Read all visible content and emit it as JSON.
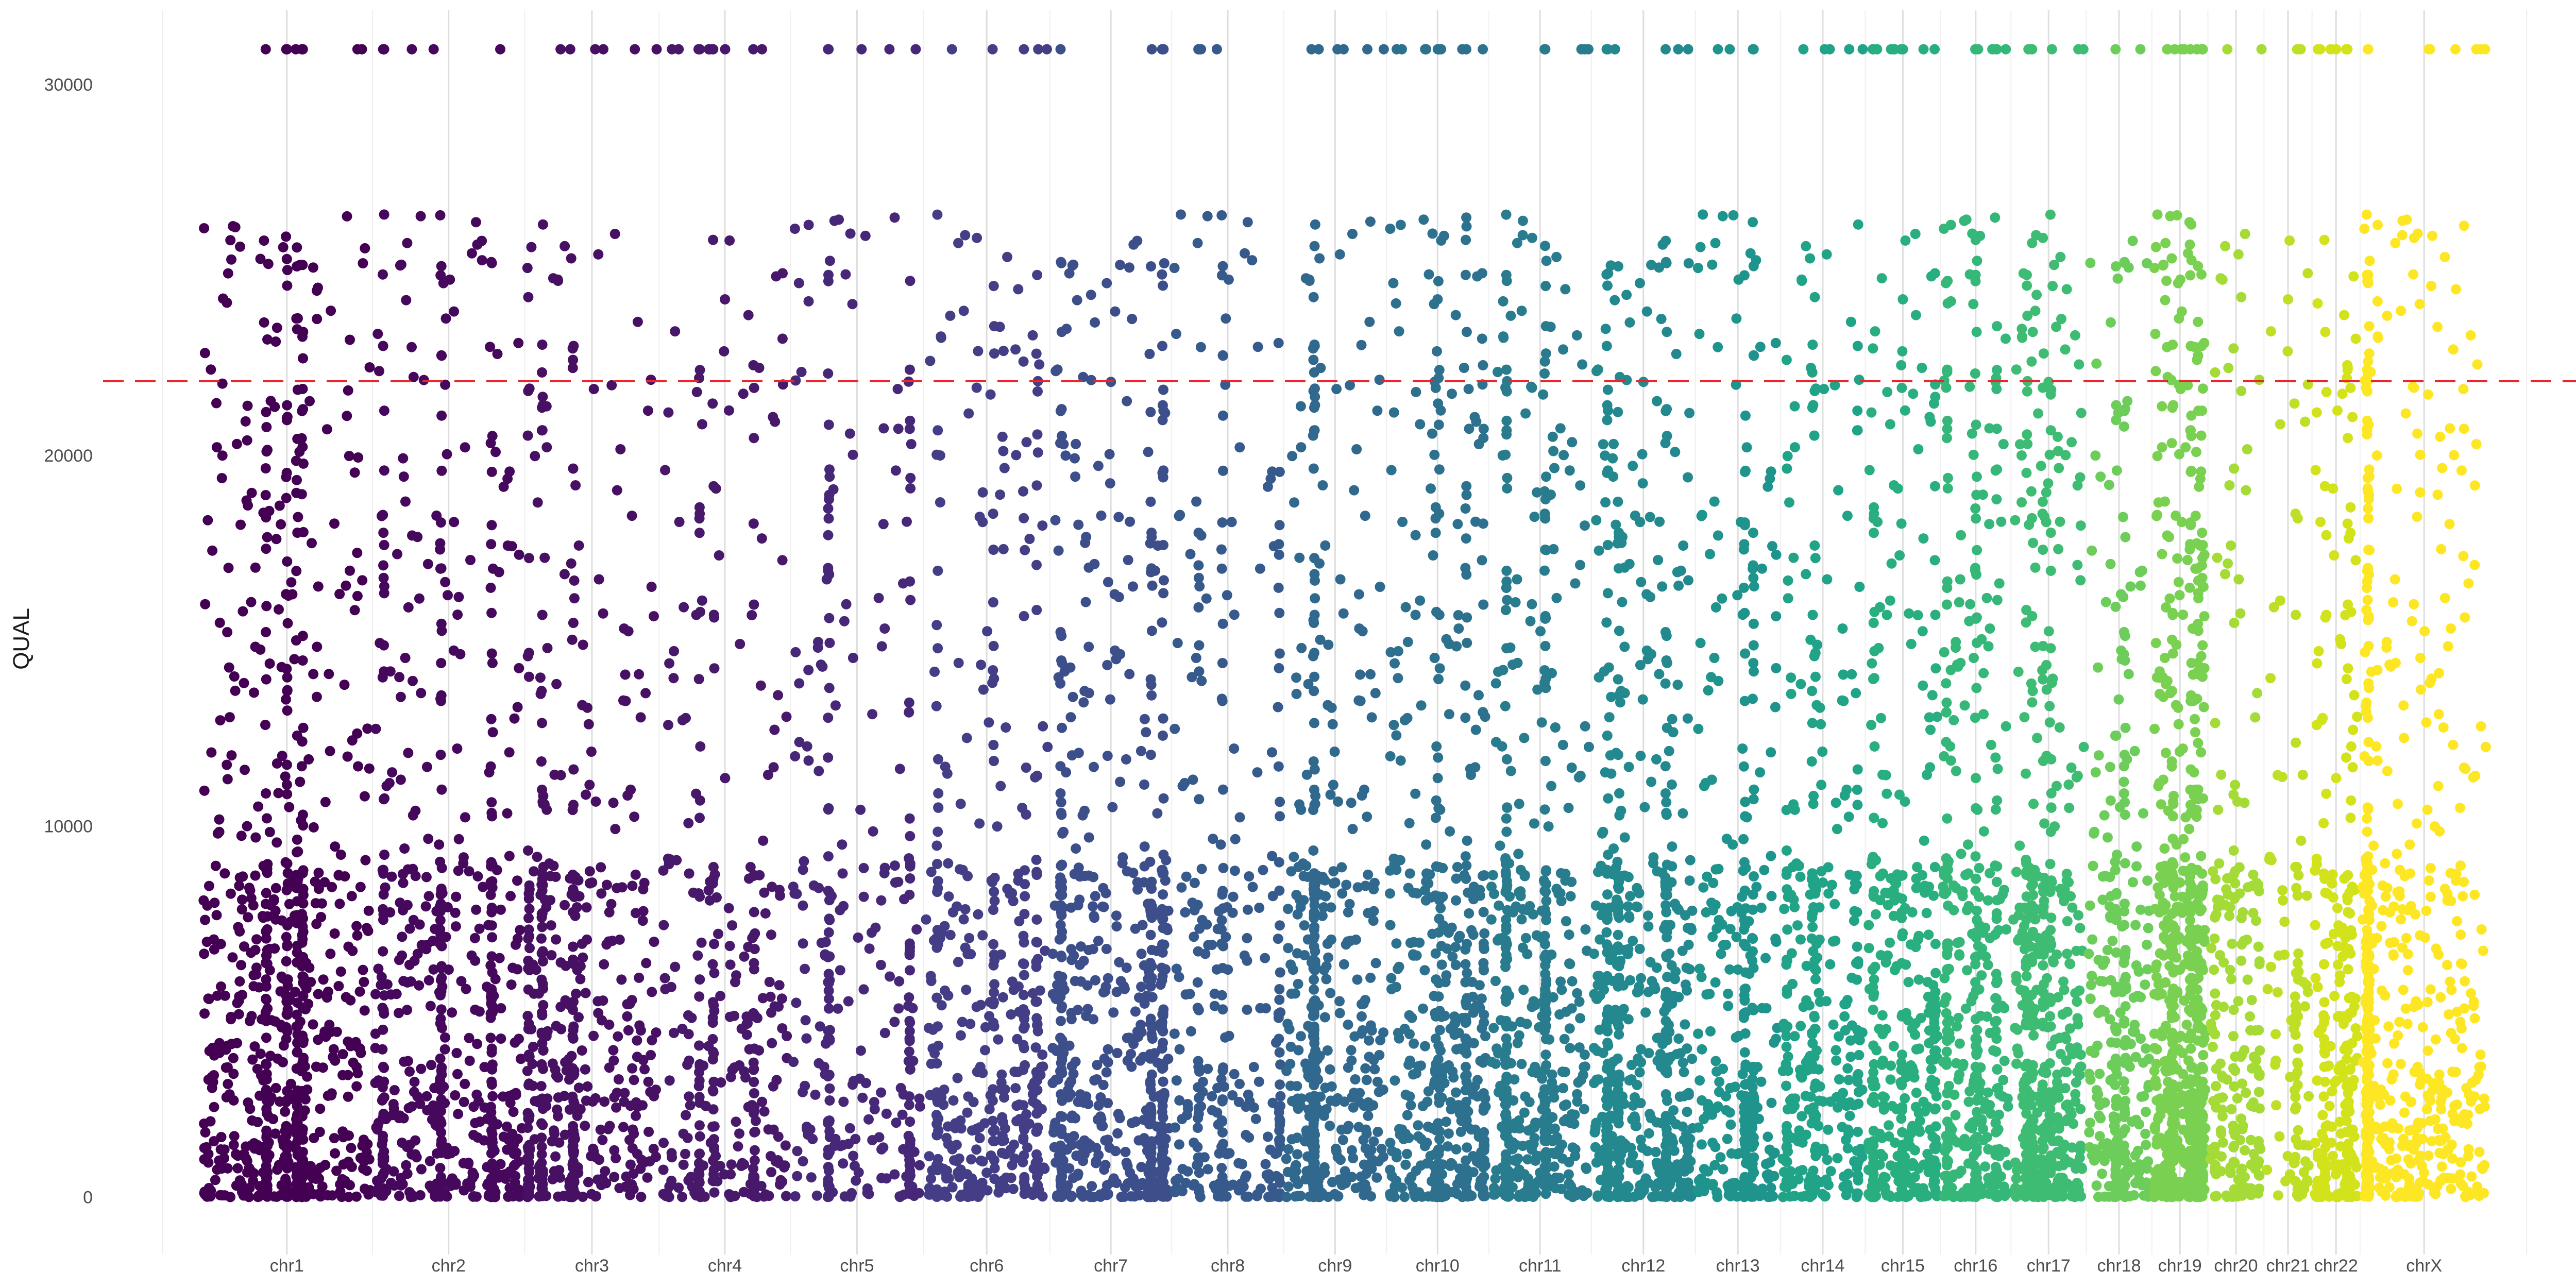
{
  "chart_data": {
    "type": "scatter",
    "title": "",
    "xlabel": "",
    "ylabel": "QUAL",
    "ylim": [
      -300,
      32000
    ],
    "y_ticks": [
      0,
      10000,
      20000,
      30000
    ],
    "y_tick_labels": [
      "0",
      "10000",
      "20000",
      "30000"
    ],
    "threshold": 22000,
    "threshold_color": "#e8262b",
    "grid": "vertical major and minor x gridlines, no horizontal gridlines",
    "legend": "none",
    "chromosomes": [
      {
        "name": "chr1",
        "start": 0,
        "end": 1070,
        "color": "#440154",
        "points": 800
      },
      {
        "name": "chr2",
        "start": 1070,
        "end": 2020,
        "color": "#46085c",
        "points": 560
      },
      {
        "name": "chr3",
        "start": 2020,
        "end": 2860,
        "color": "#471063",
        "points": 480
      },
      {
        "name": "chr4",
        "start": 2860,
        "end": 3680,
        "color": "#48186a",
        "points": 320
      },
      {
        "name": "chr5",
        "start": 3680,
        "end": 4510,
        "color": "#472878",
        "points": 300
      },
      {
        "name": "chr6",
        "start": 4510,
        "end": 5300,
        "color": "#433e85",
        "points": 420
      },
      {
        "name": "chr7",
        "start": 5300,
        "end": 6060,
        "color": "#3c4f8a",
        "points": 600
      },
      {
        "name": "chr8",
        "start": 6060,
        "end": 6760,
        "color": "#375a8c",
        "points": 300
      },
      {
        "name": "chr9",
        "start": 6760,
        "end": 7400,
        "color": "#31688e",
        "points": 460
      },
      {
        "name": "chr10",
        "start": 7400,
        "end": 8040,
        "color": "#2d718e",
        "points": 500
      },
      {
        "name": "chr11",
        "start": 8040,
        "end": 8680,
        "color": "#297b8e",
        "points": 520
      },
      {
        "name": "chr12",
        "start": 8680,
        "end": 9330,
        "color": "#23898e",
        "points": 620
      },
      {
        "name": "chr13",
        "start": 9330,
        "end": 9860,
        "color": "#1f948c",
        "points": 320
      },
      {
        "name": "chr14",
        "start": 9860,
        "end": 10390,
        "color": "#20a386",
        "points": 340
      },
      {
        "name": "chr15",
        "start": 10390,
        "end": 10860,
        "color": "#29af7f",
        "points": 380
      },
      {
        "name": "chr16",
        "start": 10860,
        "end": 11300,
        "color": "#35b779",
        "points": 400
      },
      {
        "name": "chr17",
        "start": 11300,
        "end": 11770,
        "color": "#3fbc73",
        "points": 520
      },
      {
        "name": "chr18",
        "start": 11770,
        "end": 12180,
        "color": "#6ccd5a",
        "points": 300
      },
      {
        "name": "chr19",
        "start": 12180,
        "end": 12530,
        "color": "#7ad151",
        "points": 700
      },
      {
        "name": "chr20",
        "start": 12530,
        "end": 12880,
        "color": "#a5db36",
        "points": 200
      },
      {
        "name": "chr21",
        "start": 12880,
        "end": 13180,
        "color": "#bddf26",
        "points": 100
      },
      {
        "name": "chr22",
        "start": 13180,
        "end": 13480,
        "color": "#d2e21b",
        "points": 260
      },
      {
        "name": "chrX",
        "start": 13480,
        "end": 14280,
        "color": "#fde725",
        "points": 640
      }
    ],
    "x_domain": [
      -500,
      14780
    ]
  }
}
